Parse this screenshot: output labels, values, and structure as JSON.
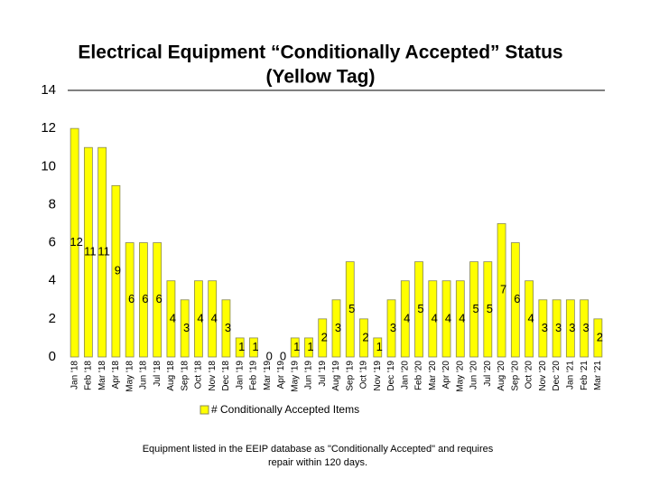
{
  "chart_data": {
    "type": "bar",
    "title": [
      "Electrical Equipment “Conditionally Accepted” Status",
      "(Yellow Tag)"
    ],
    "categories": [
      "Jan '18",
      "Feb '18",
      "Mar '18",
      "Apr '18",
      "May '18",
      "Jun '18",
      "Jul '18",
      "Aug '18",
      "Sep '18",
      "Oct '18",
      "Nov '18",
      "Dec '18",
      "Jan '19",
      "Feb '19",
      "Mar '19",
      "Apr '19",
      "May '19",
      "Jun '19",
      "Jul '19",
      "Aug '19",
      "Sep '19",
      "Oct '19",
      "Nov '19",
      "Dec '19",
      "Jan '20",
      "Feb '20",
      "Mar '20",
      "Apr '20",
      "May '20",
      "Jun '20",
      "Jul '20",
      "Aug '20",
      "Sep '20",
      "Oct '20",
      "Nov '20",
      "Dec '20",
      "Jan '21",
      "Feb '21",
      "Mar '21"
    ],
    "series": [
      {
        "name": "# Conditionally Accepted Items",
        "color": "#ffff00",
        "values": [
          12,
          11,
          11,
          9,
          6,
          6,
          6,
          4,
          3,
          4,
          4,
          3,
          1,
          1,
          0,
          0,
          1,
          1,
          2,
          3,
          5,
          2,
          1,
          3,
          4,
          5,
          4,
          4,
          4,
          5,
          5,
          7,
          6,
          4,
          3,
          3,
          3,
          3,
          2
        ]
      }
    ],
    "ylim": [
      0,
      14
    ],
    "yticks": [
      0,
      2,
      4,
      6,
      8,
      10,
      12,
      14
    ],
    "note": [
      "Equipment listed in the EEIP database as \"Conditionally Accepted\" and requires",
      "repair within 120 days."
    ]
  }
}
